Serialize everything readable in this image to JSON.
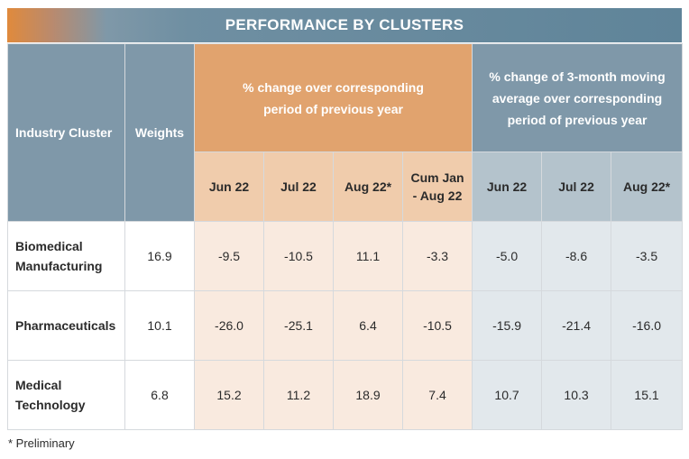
{
  "title": "PERFORMANCE BY CLUSTERS",
  "headers": {
    "industry_cluster": "Industry Cluster",
    "weights": "Weights",
    "group_yoy": "% change over corresponding period of previous year",
    "group_3m": "% change of 3-month moving average over corresponding period of previous year"
  },
  "sub_headers_yoy": [
    "Jun 22",
    "Jul 22",
    "Aug 22*",
    "Cum Jan - Aug 22"
  ],
  "sub_headers_3m": [
    "Jun 22",
    "Jul 22",
    "Aug 22*"
  ],
  "rows": [
    {
      "cluster": "Biomedical Manufacturing",
      "weight": "16.9",
      "yoy": [
        "-9.5",
        "-10.5",
        "11.1",
        "-3.3"
      ],
      "ma3": [
        "-5.0",
        "-8.6",
        "-3.5"
      ]
    },
    {
      "cluster": "Pharmaceuticals",
      "weight": "10.1",
      "yoy": [
        "-26.0",
        "-25.1",
        "6.4",
        "-10.5"
      ],
      "ma3": [
        "-15.9",
        "-21.4",
        "-16.0"
      ]
    },
    {
      "cluster": "Medical Technology",
      "weight": "6.8",
      "yoy": [
        "15.2",
        "11.2",
        "18.9",
        "7.4"
      ],
      "ma3": [
        "10.7",
        "10.3",
        "15.1"
      ]
    }
  ],
  "footnote": "* Preliminary",
  "colors": {
    "header_blue": "#7f98a9",
    "header_orange": "#e1a36e",
    "sub_orange": "#f0ccac",
    "sub_blue": "#b4c3cc",
    "cell_orange": "#f9eadf",
    "cell_blue": "#e2e8ec"
  }
}
